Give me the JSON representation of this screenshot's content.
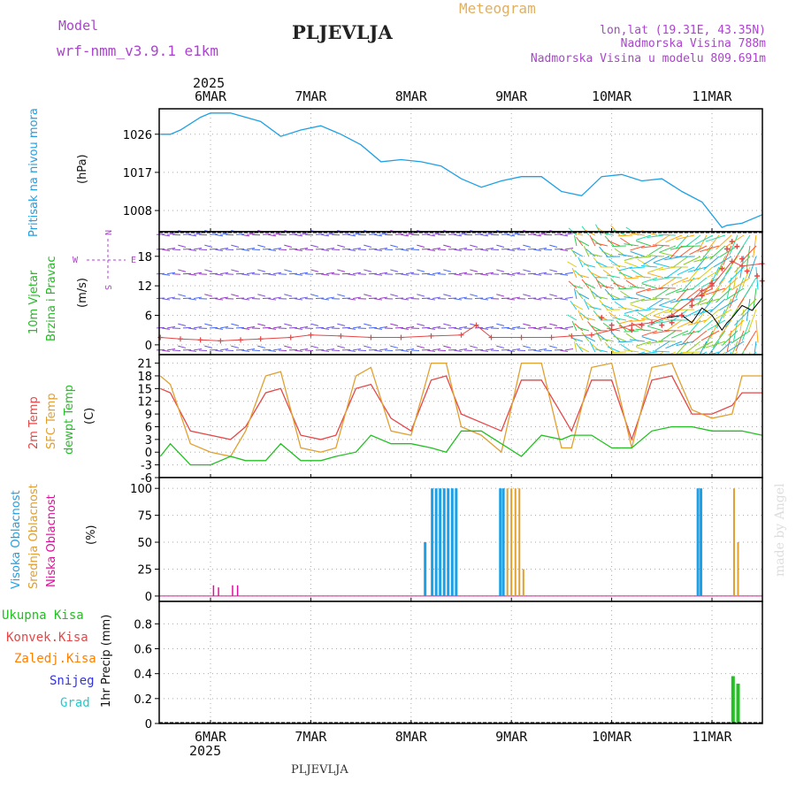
{
  "header": {
    "model_label": "Model",
    "model_value": "wrf-nmm_v3.9.1 e1km",
    "station": "PLJEVLJA",
    "meteogram_label": "Meteogram",
    "lonlat": "lon,lat (19.31E, 43.35N)",
    "altitude": "Nadmorska Visina 788m",
    "model_altitude": "Nadmorska Visina u modelu 809.691m",
    "footer_station": "PLJEVLJA",
    "watermark": "made by Angel"
  },
  "colors": {
    "pressure": "#1ea0e6",
    "wind_title": "#22bb22",
    "temp2m": "#e64646",
    "sfc": "#e0a030",
    "dewpt": "#22c022",
    "cloud_high": "#1ea0e6",
    "cloud_mid": "#e0a030",
    "cloud_low": "#dd1199",
    "precip_total": "#22c022",
    "precip_conv": "#e64646",
    "precip_frz": "#ff7f00",
    "snow": "#3333dd",
    "hail": "#22cccc",
    "purple": "#aa44cc"
  },
  "chart_data": [
    {
      "type": "line",
      "panel": "pressure",
      "ylabel_left": "Pritisak na nivou mora",
      "ylabel_unit": "(hPa)",
      "year_top": "2025",
      "x_labels_top": [
        "6MAR",
        "7MAR",
        "8MAR",
        "9MAR",
        "10MAR",
        "11MAR"
      ],
      "yticks": [
        1008,
        1017,
        1026
      ],
      "ylim": [
        1003,
        1032
      ],
      "x_days": [
        -0.5,
        -0.4,
        -0.3,
        -0.1,
        0,
        0.2,
        0.5,
        0.7,
        0.9,
        1.1,
        1.3,
        1.5,
        1.7,
        1.9,
        2.1,
        2.3,
        2.5,
        2.7,
        2.9,
        3.1,
        3.3,
        3.5,
        3.7,
        3.9,
        4.1,
        4.3,
        4.5,
        4.7,
        4.9,
        5.1,
        5.15,
        5.3,
        5.5
      ],
      "values": [
        1026,
        1026,
        1027,
        1030,
        1031,
        1031,
        1029,
        1025.5,
        1027,
        1028,
        1026,
        1023.5,
        1019.5,
        1020,
        1019.5,
        1018.5,
        1015.5,
        1013.5,
        1015,
        1016,
        1016,
        1012.5,
        1011.5,
        1016,
        1016.5,
        1015,
        1015.5,
        1012.5,
        1010,
        1004,
        1004.5,
        1005,
        1007
      ]
    },
    {
      "type": "scatter",
      "panel": "wind",
      "ylabel_left": "10m Vjetar",
      "ylabel_left2": "Brzina i Pravac",
      "ylabel_unit": "(m/s)",
      "compass": {
        "n": "N",
        "s": "S",
        "w": "W",
        "e": "E"
      },
      "yticks": [
        0,
        6,
        12,
        18
      ],
      "ylim": [
        -2,
        23
      ],
      "x_days": [
        -0.5,
        -0.3,
        -0.1,
        0.1,
        0.3,
        0.5,
        0.8,
        1.0,
        1.3,
        1.6,
        1.9,
        2.2,
        2.5,
        2.65,
        2.8,
        3.1,
        3.4,
        3.6,
        3.8,
        4.0,
        4.2,
        4.4,
        4.6,
        4.8,
        4.9,
        5.0,
        5.2,
        5.3,
        5.5
      ],
      "values": [
        1.5,
        1.2,
        1.0,
        0.8,
        1.0,
        1.2,
        1.5,
        2.0,
        1.8,
        1.5,
        1.5,
        1.8,
        2.0,
        4.0,
        1.5,
        1.5,
        1.5,
        1.8,
        2.0,
        3.0,
        4.0,
        4.5,
        6.0,
        9.0,
        11.0,
        12.0,
        17.0,
        16.0,
        16.5
      ],
      "gust_days": [
        3.9,
        4.0,
        4.2,
        4.3,
        4.5,
        4.6,
        4.7,
        4.8,
        4.9,
        5.0,
        5.1,
        5.15,
        5.2,
        5.25,
        5.3,
        5.35,
        5.45,
        5.5
      ],
      "gust_values": [
        5.5,
        4,
        3,
        4,
        4,
        4.5,
        6,
        8,
        10,
        12.5,
        15.5,
        19.5,
        21,
        20,
        17.5,
        15,
        14,
        13
      ],
      "speed_days": [
        4.55,
        4.7,
        4.8,
        4.9,
        5.0,
        5.1,
        5.15,
        5.2,
        5.3,
        5.4,
        5.5
      ],
      "speed_values": [
        5.5,
        6,
        4.5,
        7.5,
        6,
        3,
        4.5,
        5.5,
        8,
        7,
        9.5
      ]
    },
    {
      "type": "line",
      "panel": "temperature",
      "ylabel_left": "2m Temp",
      "ylabel_left2": "SFC Temp",
      "ylabel_left3": "dewpt Temp",
      "ylabel_unit": "(C)",
      "yticks": [
        -6,
        -3,
        0,
        3,
        6,
        9,
        12,
        15,
        18,
        21
      ],
      "ylim": [
        -6,
        23
      ],
      "series": [
        {
          "name": "2m Temp",
          "x_days": [
            -0.5,
            -0.4,
            -0.2,
            0,
            0.2,
            0.35,
            0.55,
            0.7,
            0.9,
            1.1,
            1.25,
            1.45,
            1.6,
            1.8,
            2.0,
            2.2,
            2.35,
            2.5,
            2.7,
            2.9,
            3.1,
            3.3,
            3.5,
            3.6,
            3.8,
            4.0,
            4.2,
            4.4,
            4.6,
            4.8,
            5.0,
            5.2,
            5.3,
            5.5
          ],
          "values": [
            15,
            14,
            5,
            4,
            3,
            6,
            14,
            15,
            4,
            3,
            4,
            15,
            16,
            8,
            5,
            17,
            18,
            9,
            7,
            5,
            17,
            17,
            9,
            5,
            17,
            17,
            3,
            17,
            18,
            9,
            9,
            11,
            14,
            14
          ]
        },
        {
          "name": "SFC Temp",
          "x_days": [
            -0.5,
            -0.4,
            -0.2,
            0,
            0.2,
            0.35,
            0.55,
            0.7,
            0.9,
            1.1,
            1.25,
            1.45,
            1.6,
            1.8,
            2.0,
            2.2,
            2.35,
            2.5,
            2.7,
            2.9,
            3.1,
            3.3,
            3.5,
            3.6,
            3.8,
            4.0,
            4.2,
            4.4,
            4.6,
            4.8,
            5.0,
            5.2,
            5.3,
            5.5
          ],
          "values": [
            18,
            16,
            2,
            0,
            -1,
            5,
            18,
            19,
            1,
            0,
            1,
            18,
            20,
            5,
            4,
            21,
            21,
            6,
            4,
            0,
            21,
            21,
            1,
            1,
            20,
            21,
            1,
            20,
            21,
            10,
            8,
            9,
            18,
            18
          ]
        },
        {
          "name": "dewpt Temp",
          "x_days": [
            -0.5,
            -0.4,
            -0.2,
            0,
            0.2,
            0.35,
            0.55,
            0.7,
            0.9,
            1.1,
            1.25,
            1.45,
            1.6,
            1.8,
            2.0,
            2.2,
            2.35,
            2.5,
            2.7,
            2.9,
            3.1,
            3.3,
            3.5,
            3.6,
            3.8,
            4.0,
            4.2,
            4.4,
            4.6,
            4.8,
            5.0,
            5.2,
            5.3,
            5.5
          ],
          "values": [
            -1,
            2,
            -3,
            -3,
            -1,
            -2,
            -2,
            2,
            -2,
            -2,
            -1,
            0,
            4,
            2,
            2,
            1,
            0,
            5,
            5,
            2,
            -1,
            4,
            3,
            4,
            4,
            1,
            1,
            5,
            6,
            6,
            5,
            5,
            5,
            4
          ]
        }
      ]
    },
    {
      "type": "bar",
      "panel": "cloud",
      "ylabel_left": "Visoka Oblacnost",
      "ylabel_left2": "Srednja Oblacnost",
      "ylabel_left3": "Niska Oblacnost",
      "ylabel_unit": "(%)",
      "yticks": [
        0,
        25,
        50,
        75,
        100
      ],
      "ylim": [
        -5,
        110
      ],
      "series": [
        {
          "name": "Visoka Oblacnost",
          "x_days": [
            2.14,
            2.21,
            2.25,
            2.29,
            2.33,
            2.37,
            2.41,
            2.45,
            2.89,
            2.92,
            4.86,
            4.89
          ],
          "values": [
            50,
            100,
            100,
            100,
            100,
            100,
            100,
            100,
            100,
            100,
            100,
            100
          ]
        },
        {
          "name": "Srednja Oblacnost",
          "x_days": [
            2.96,
            3.0,
            3.04,
            3.08,
            3.12,
            5.22,
            5.26
          ],
          "values": [
            100,
            100,
            100,
            100,
            25,
            100,
            50
          ]
        },
        {
          "name": "Niska Oblacnost",
          "x_days": [
            0.03,
            0.08,
            0.22,
            0.27
          ],
          "values": [
            10,
            8,
            10,
            10
          ]
        }
      ]
    },
    {
      "type": "bar",
      "panel": "precip",
      "legend": [
        "Ukupna Kisa",
        "Konvek.Kisa",
        "Zaledj.Kisa",
        "Snijeg",
        "Grad"
      ],
      "ylabel_unit": "1hr Precip (mm)",
      "yticks": [
        "0",
        "0.2",
        "0.4",
        "0.6",
        "0.8"
      ],
      "ylim": [
        0,
        0.98
      ],
      "x_labels_bottom": [
        "6MAR",
        "7MAR",
        "8MAR",
        "9MAR",
        "10MAR",
        "11MAR"
      ],
      "year_bottom": "2025",
      "x_days": [
        5.21,
        5.26
      ],
      "values": [
        0.38,
        0.32
      ]
    }
  ]
}
